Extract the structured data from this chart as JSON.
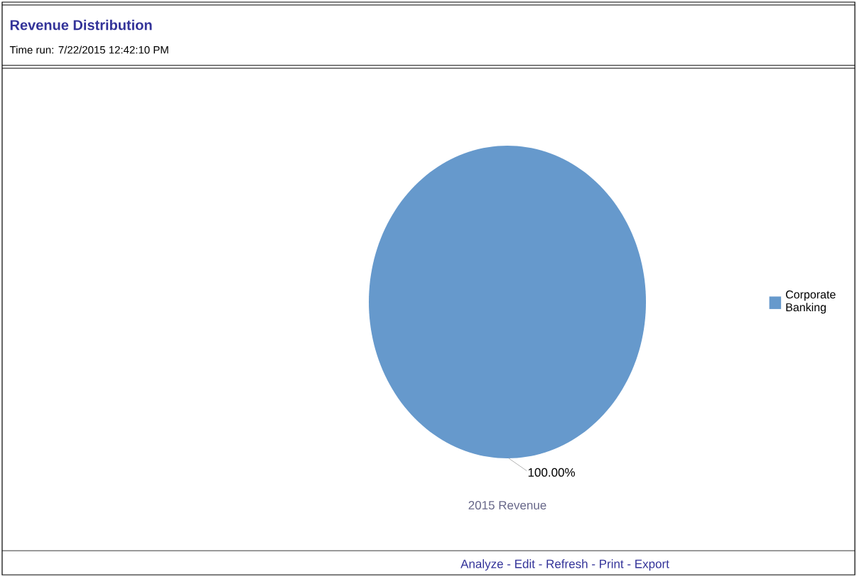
{
  "chart_data": {
    "type": "pie",
    "title": "Revenue Distribution",
    "subtitle": "Time run: 7/22/2015 12:42:10 PM",
    "xlabel": "2015 Revenue",
    "categories": [
      "Corporate Banking"
    ],
    "values": [
      100
    ],
    "colors": [
      "#6699cc"
    ],
    "value_labels": [
      "100.00%"
    ],
    "legend": "right",
    "annotations": [
      "Analyze - Edit - Refresh - Print - Export"
    ]
  }
}
